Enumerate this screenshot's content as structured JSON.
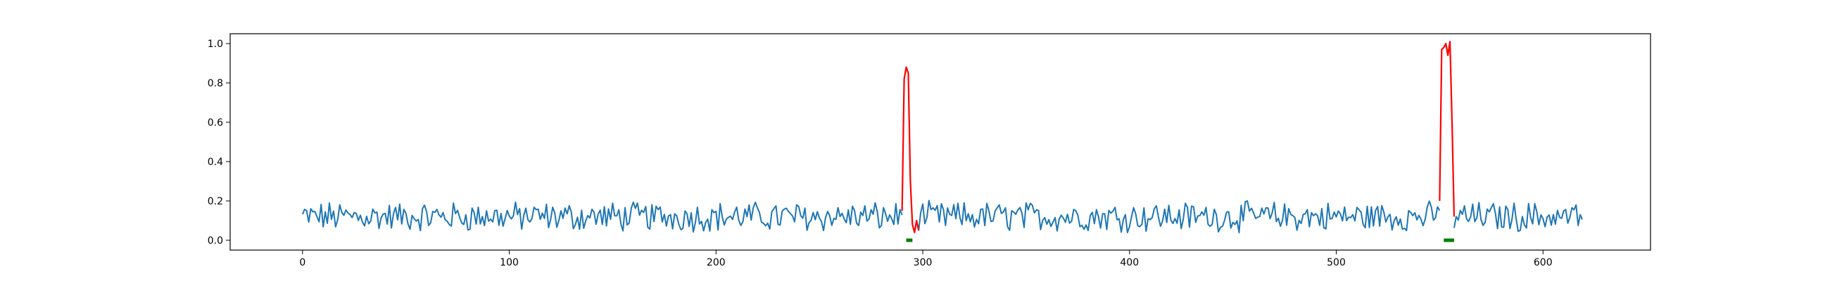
{
  "chart_data": {
    "type": "line",
    "title": "",
    "xlabel": "",
    "ylabel": "",
    "xlim": [
      -35,
      652
    ],
    "ylim": [
      -0.05,
      1.05
    ],
    "grid": false,
    "x_ticks": [
      "0",
      "100",
      "200",
      "300",
      "400",
      "500",
      "600"
    ],
    "x_tick_values": [
      0,
      100,
      200,
      300,
      400,
      500,
      600
    ],
    "y_ticks": [
      "0.0",
      "0.2",
      "0.4",
      "0.6",
      "0.8",
      "1.0"
    ],
    "y_tick_values": [
      0.0,
      0.2,
      0.4,
      0.6,
      0.8,
      1.0
    ],
    "series": [
      {
        "color": "#1f77b4",
        "x_range": [
          0,
          619
        ],
        "baseline": 0.12,
        "amplitude": 0.065,
        "min_value": 0.0,
        "max_value": 0.26
      },
      {
        "color": "#ff0000",
        "segments": [
          {
            "x": [
              290,
              291,
              292,
              293,
              294,
              295,
              296,
              297,
              298
            ],
            "y": [
              0.15,
              0.82,
              0.88,
              0.85,
              0.3,
              0.08,
              0.04,
              0.1,
              0.05
            ]
          },
          {
            "x": [
              550,
              551,
              552,
              553,
              554,
              555,
              556,
              557
            ],
            "y": [
              0.2,
              0.97,
              0.98,
              1.0,
              0.94,
              1.01,
              0.6,
              0.12
            ]
          }
        ]
      },
      {
        "color": "#008000",
        "markers": [
          {
            "x": [
              292,
              295
            ],
            "y": 0.0
          },
          {
            "x": [
              552,
              557
            ],
            "y": 0.0
          }
        ]
      }
    ]
  }
}
